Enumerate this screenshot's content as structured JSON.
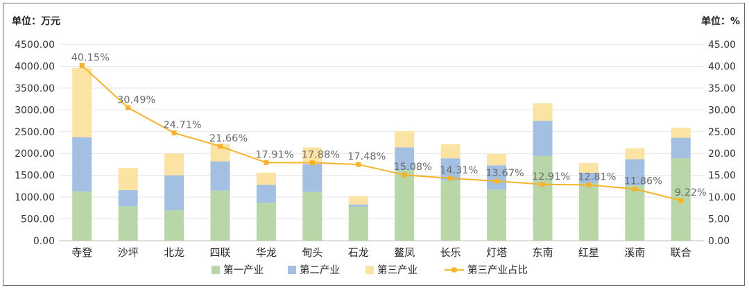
{
  "chart_data": {
    "type": "bar",
    "stacked": true,
    "left_axis_unit": "单位：万元",
    "right_axis_unit": "单位：%",
    "left_ylim": [
      0,
      4500
    ],
    "right_ylim": [
      0,
      45
    ],
    "left_ticks": [
      "0.00",
      "500.00",
      "1000.00",
      "1500.00",
      "2000.00",
      "2500.00",
      "3000.00",
      "3500.00",
      "4000.00",
      "4500.00"
    ],
    "right_ticks": [
      "0.00",
      "5.00",
      "10.00",
      "15.00",
      "20.00",
      "25.00",
      "30.00",
      "35.00",
      "40.00",
      "45.00"
    ],
    "grid": true,
    "legend_position": "bottom",
    "categories": [
      "寺登",
      "沙坪",
      "北龙",
      "四联",
      "华龙",
      "甸头",
      "石龙",
      "鳌凤",
      "长乐",
      "灯塔",
      "东南",
      "红星",
      "溪南",
      "联合"
    ],
    "series": [
      {
        "name": "第一产业",
        "kind": "bar",
        "color": "#b8d6a8",
        "values": [
          1130,
          790,
          700,
          1150,
          870,
          1120,
          780,
          1620,
          1380,
          1170,
          1940,
          1320,
          1270,
          1890
        ]
      },
      {
        "name": "第二产业",
        "kind": "bar",
        "color": "#a3bfe2",
        "values": [
          1240,
          370,
          800,
          670,
          410,
          640,
          50,
          520,
          510,
          560,
          810,
          240,
          600,
          470
        ]
      },
      {
        "name": "第三产业",
        "kind": "bar",
        "color": "#fbe3a3",
        "values": [
          1590,
          510,
          500,
          400,
          280,
          380,
          190,
          370,
          320,
          260,
          400,
          220,
          250,
          230
        ]
      },
      {
        "name": "第三产业占比",
        "kind": "line",
        "color": "#f5b32b",
        "values": [
          40.15,
          30.49,
          24.71,
          21.66,
          17.91,
          17.88,
          17.48,
          15.08,
          14.31,
          13.67,
          12.91,
          12.81,
          11.86,
          9.22
        ],
        "labels": [
          "40.15%",
          "30.49%",
          "24.71%",
          "21.66%",
          "17.91%",
          "17.88%",
          "17.48%",
          "15.08%",
          "14.31%",
          "13.67%",
          "12.91%",
          "12.81%",
          "11.86%",
          "9.22%"
        ]
      }
    ]
  }
}
